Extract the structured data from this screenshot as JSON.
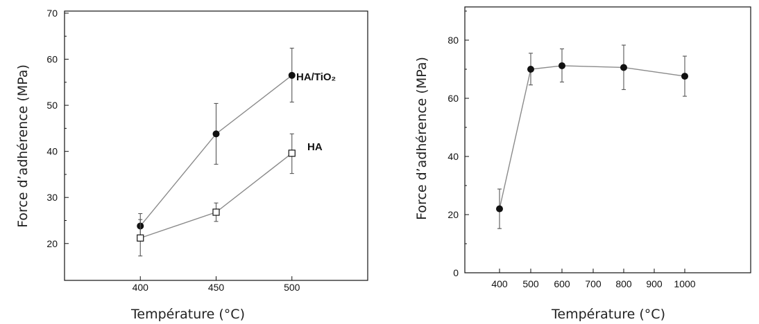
{
  "chart_data": [
    {
      "type": "line",
      "xlabel": "Température (°C)",
      "ylabel": "Force d’adhérence (MPa)",
      "xlim": [
        350,
        550
      ],
      "ylim": [
        12,
        70
      ],
      "x_ticks": [
        "400",
        "450",
        "500"
      ],
      "y_ticks": [
        "20",
        "30",
        "40",
        "50",
        "60",
        "70"
      ],
      "series": [
        {
          "name": "HA/TiO₂",
          "marker": "filled-circle",
          "color": "#111111",
          "x": [
            400,
            450,
            500
          ],
          "y": [
            23.8,
            43.8,
            56.5
          ],
          "err_low": [
            21.0,
            37.2,
            50.7
          ],
          "err_high": [
            26.5,
            50.4,
            62.4
          ]
        },
        {
          "name": "HA",
          "marker": "open-square",
          "color": "#111111",
          "x": [
            400,
            450,
            500
          ],
          "y": [
            21.2,
            26.8,
            39.6
          ],
          "err_low": [
            17.3,
            24.8,
            35.2
          ],
          "err_high": [
            25.2,
            28.8,
            43.8
          ]
        }
      ]
    },
    {
      "type": "line",
      "xlabel": "Température (°C)",
      "ylabel": "Force d’adhérence (MPa)",
      "ylim": [
        0,
        90
      ],
      "x_ticks": [
        "400",
        "500",
        "600",
        "700",
        "800",
        "900",
        "1000"
      ],
      "y_ticks": [
        "0",
        "20",
        "40",
        "60",
        "80"
      ],
      "series": [
        {
          "marker": "filled-circle",
          "color": "#111111",
          "x": [
            400,
            500,
            600,
            800,
            1000
          ],
          "y": [
            22,
            70,
            71.2,
            70.6,
            67.6
          ],
          "err_low": [
            15.2,
            64.6,
            65.6,
            63.0,
            60.7
          ],
          "err_high": [
            28.8,
            75.5,
            77.0,
            78.3,
            74.5
          ]
        }
      ]
    }
  ]
}
